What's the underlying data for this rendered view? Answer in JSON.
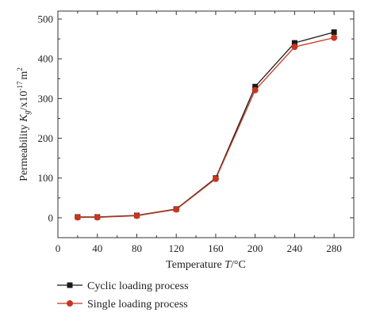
{
  "chart_data": {
    "type": "line",
    "title": "",
    "xlabel": "Temperature T/°C",
    "ylabel": "Permeability K_g/x10^-17 m^2",
    "xlim": [
      0,
      300
    ],
    "ylim": [
      -50,
      520
    ],
    "x_ticks": [
      0,
      40,
      80,
      120,
      160,
      200,
      240,
      280
    ],
    "y_ticks": [
      0,
      100,
      200,
      300,
      400,
      500
    ],
    "grid": false,
    "legend_position": "bottom-left",
    "x": [
      20,
      40,
      80,
      120,
      160,
      200,
      240,
      280
    ],
    "series": [
      {
        "name": "Cyclic loading process",
        "color": "#1a1a1a",
        "marker": "square",
        "values": [
          2,
          2,
          6,
          22,
          100,
          330,
          440,
          467
        ]
      },
      {
        "name": "Single loading process",
        "color": "#c8361e",
        "marker": "circle",
        "values": [
          1,
          1,
          5,
          21,
          98,
          321,
          430,
          453
        ]
      }
    ]
  }
}
